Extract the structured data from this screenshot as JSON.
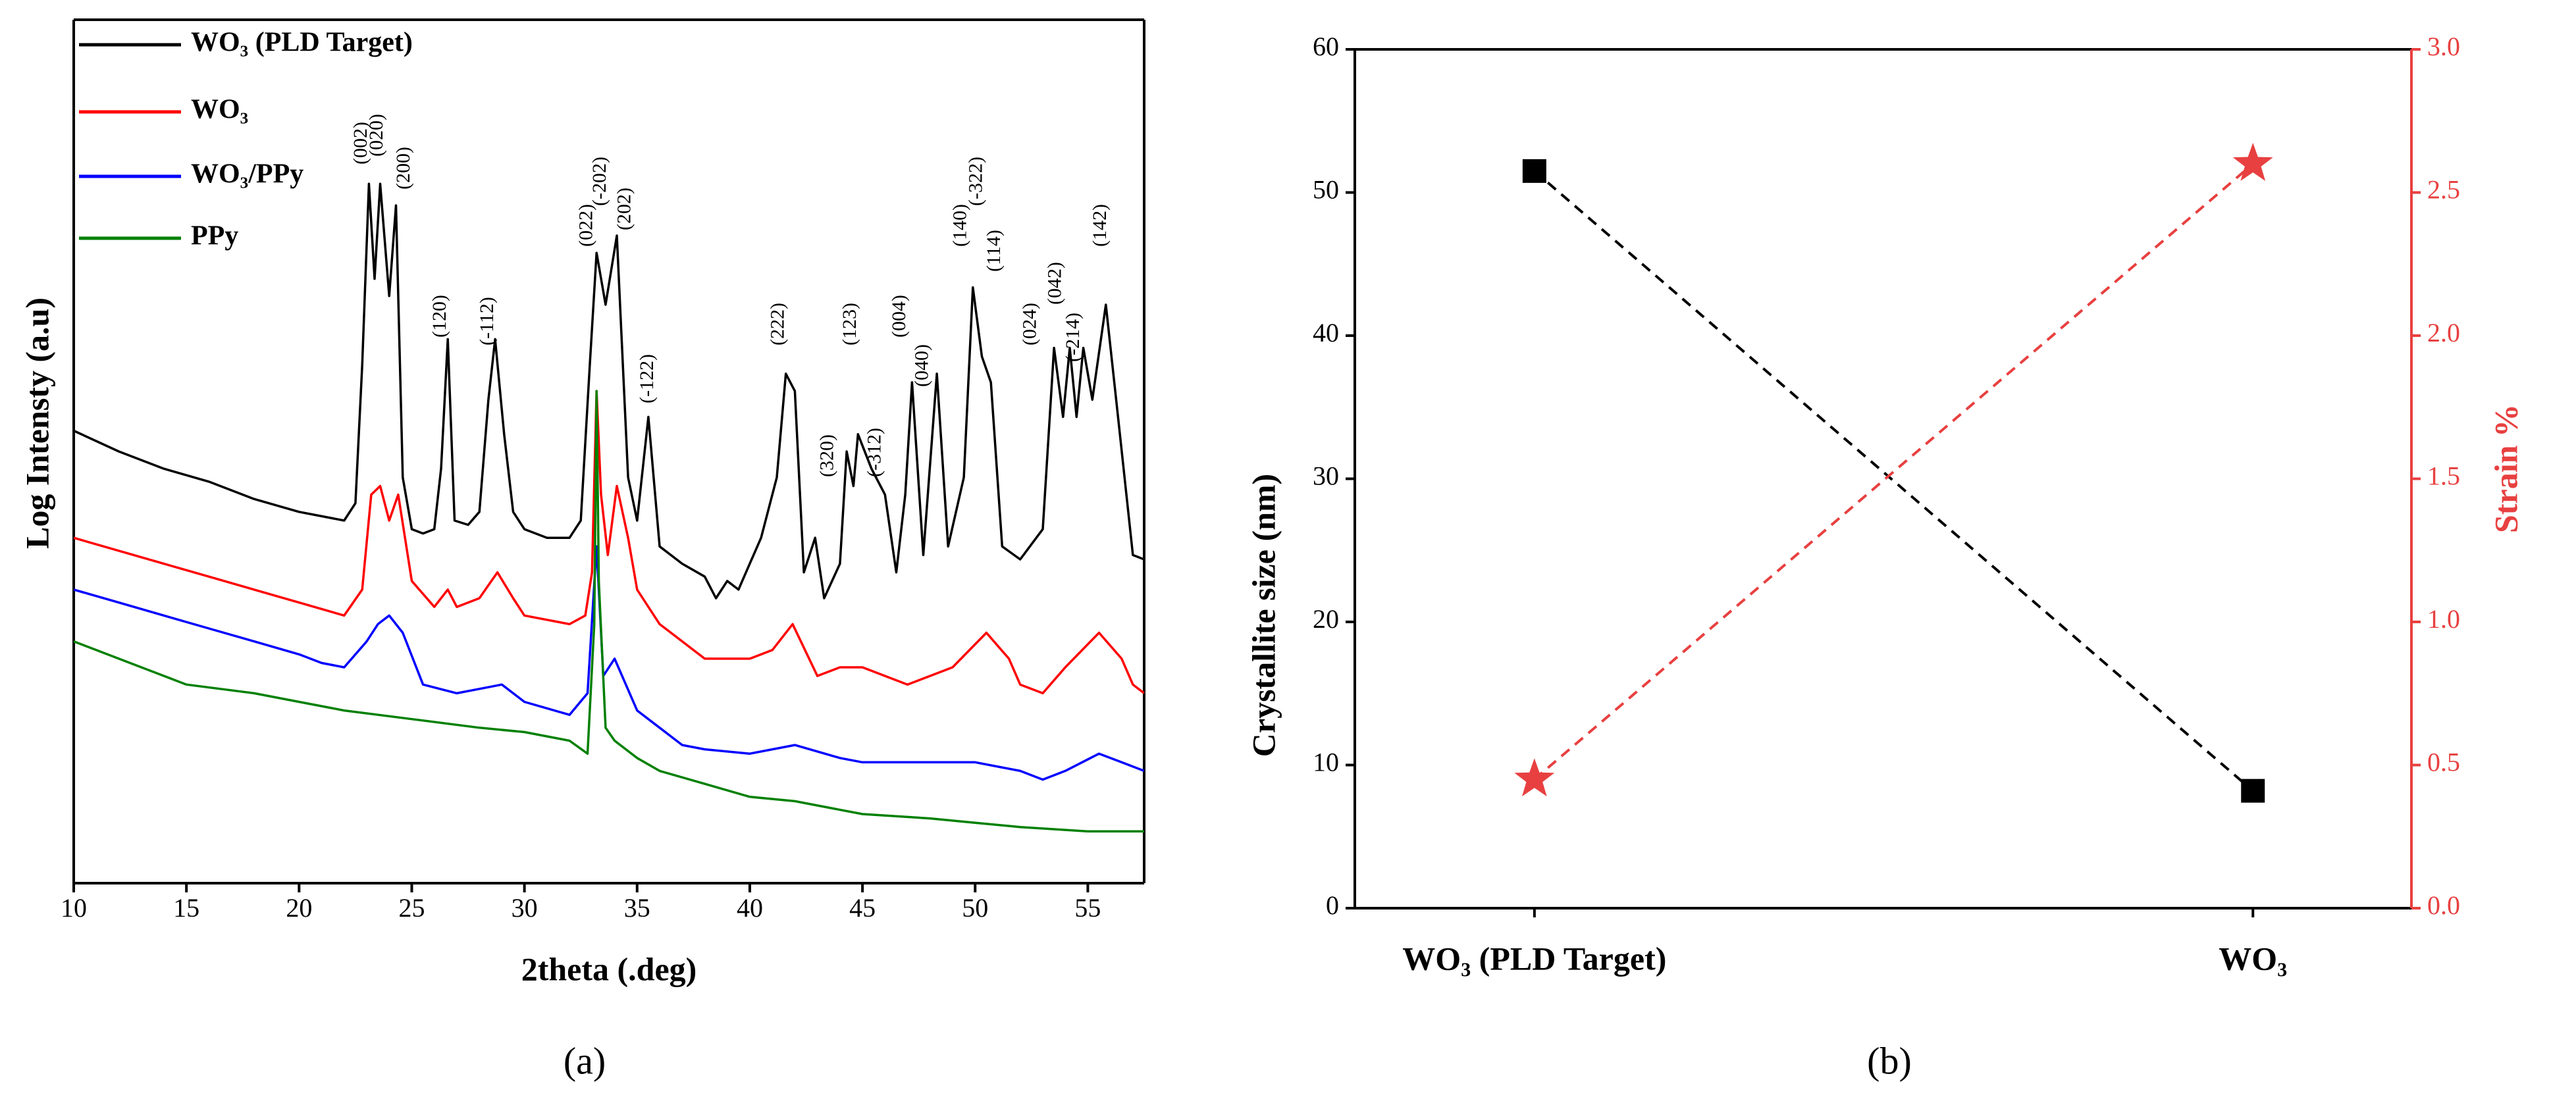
{
  "chart_data": [
    {
      "type": "line",
      "xlabel": "2theta (.deg)",
      "ylabel": "Log Intensty (a.u)",
      "caption": "(a)",
      "xlim": [
        10,
        57.5
      ],
      "xticks": [
        10,
        15,
        20,
        25,
        30,
        35,
        40,
        45,
        50,
        55
      ],
      "ylim": [
        0,
        100
      ],
      "legend": "upper left",
      "series": [
        {
          "name": "WO₃ (PLD Target)",
          "color": "#000000",
          "x": [
            10,
            12,
            14,
            16,
            18,
            20,
            21,
            22,
            22.5,
            22.8,
            23.1,
            23.35,
            23.6,
            24.0,
            24.3,
            24.6,
            25,
            25.5,
            26,
            26.3,
            26.6,
            26.9,
            27.5,
            28,
            28.4,
            28.7,
            29.1,
            29.5,
            30,
            31,
            32,
            32.5,
            32.9,
            33.2,
            33.6,
            34.1,
            34.6,
            35.0,
            35.5,
            36,
            37,
            38,
            38.5,
            39,
            39.5,
            40,
            40.5,
            41.2,
            41.6,
            42.0,
            42.4,
            42.9,
            43.3,
            44,
            44.3,
            44.6,
            44.8,
            45.4,
            46,
            46.5,
            46.9,
            47.2,
            47.7,
            48.3,
            48.8,
            49.5,
            49.9,
            50.3,
            50.7,
            51.2,
            52,
            53,
            53.5,
            53.9,
            54.2,
            54.5,
            54.8,
            55.2,
            55.8,
            56.3,
            57,
            57.5
          ],
          "values": [
            52.4,
            50,
            48,
            46.5,
            44.5,
            43,
            42.5,
            42,
            44,
            60,
            81,
            70,
            81,
            68,
            78.5,
            47,
            41,
            40.5,
            41,
            48,
            63,
            42,
            41.5,
            43,
            56,
            63,
            52,
            43,
            41,
            40,
            40,
            42,
            60,
            73,
            67,
            75,
            47,
            42,
            54,
            39,
            37,
            35.5,
            33,
            35,
            34,
            37,
            40,
            47,
            59,
            57,
            36,
            40,
            33,
            37,
            50,
            46,
            52,
            48,
            45,
            36,
            45,
            58,
            38,
            59,
            39,
            47,
            69,
            61,
            58,
            39,
            37.5,
            41,
            62,
            54,
            62,
            54,
            62,
            56,
            67,
            55,
            38,
            37.5
          ]
        },
        {
          "name": "WO₃",
          "color": "#ff0000",
          "x": [
            10,
            12,
            14,
            16,
            18,
            20,
            22,
            22.8,
            23.2,
            23.6,
            24.0,
            24.4,
            25,
            26,
            26.6,
            27,
            28,
            28.8,
            29.5,
            30,
            32,
            32.7,
            33.0,
            33.2,
            33.4,
            33.7,
            34.1,
            34.6,
            35,
            36,
            37,
            38,
            39,
            40,
            41,
            41.9,
            43,
            44,
            45,
            46,
            47,
            48,
            49,
            50.5,
            51.5,
            52,
            53,
            54,
            55.5,
            56.5,
            57,
            57.5
          ],
          "values": [
            40,
            38.5,
            37,
            35.5,
            34,
            32.5,
            31,
            34,
            45,
            46,
            42,
            45,
            35,
            32,
            34,
            32,
            33,
            36,
            33,
            31,
            30,
            31,
            36,
            57,
            45,
            38,
            46,
            40,
            34,
            30,
            28,
            26,
            26,
            26,
            27,
            30,
            24,
            25,
            25,
            24,
            23,
            24,
            25,
            29,
            26,
            23,
            22,
            25,
            29,
            26,
            23,
            22
          ]
        },
        {
          "name": "WO₃/PPy",
          "color": "#0000ff",
          "x": [
            10,
            12,
            14,
            16,
            18,
            20,
            21,
            22,
            23,
            23.5,
            24.0,
            24.6,
            25.5,
            27,
            28,
            29,
            30,
            32,
            32.8,
            33.2,
            33.5,
            34.0,
            35,
            36,
            37,
            38,
            40,
            42,
            44,
            45,
            47,
            50,
            52,
            53,
            54,
            55.5,
            56.5,
            57.5
          ],
          "values": [
            34,
            32.5,
            31,
            29.5,
            28,
            26.5,
            25.5,
            25,
            28,
            30,
            31,
            29,
            23,
            22,
            22.5,
            23,
            21,
            19.5,
            22,
            39,
            24,
            26,
            20,
            18,
            16,
            15.5,
            15,
            16,
            14.5,
            14,
            14,
            14,
            13,
            12,
            13,
            15,
            14,
            13
          ]
        },
        {
          "name": "PPy",
          "color": "#008000",
          "x": [
            10,
            12,
            15,
            18,
            20,
            22,
            25,
            28,
            30,
            32,
            32.8,
            33.1,
            33.2,
            33.3,
            33.6,
            34,
            35,
            36,
            38,
            40,
            42,
            45,
            48,
            50,
            52,
            55,
            57.5
          ],
          "values": [
            28,
            26,
            23,
            22,
            21,
            20,
            19,
            18,
            17.5,
            16.5,
            15,
            30,
            57,
            35,
            18,
            16.5,
            14.5,
            13,
            11.5,
            10,
            9.5,
            8,
            7.5,
            7,
            6.5,
            6,
            6
          ]
        }
      ],
      "annotations": [
        {
          "text": "(002)",
          "x": 22.8
        },
        {
          "text": "(020)",
          "x": 23.5
        },
        {
          "text": "(200)",
          "x": 24.7
        },
        {
          "text": "(120)",
          "x": 26.3
        },
        {
          "text": "(-112)",
          "x": 28.4
        },
        {
          "text": "(022)",
          "x": 32.8
        },
        {
          "text": "(-202)",
          "x": 33.4
        },
        {
          "text": "(202)",
          "x": 34.5
        },
        {
          "text": "(-122)",
          "x": 35.5
        },
        {
          "text": "(222)",
          "x": 41.3
        },
        {
          "text": "(320)",
          "x": 43.5
        },
        {
          "text": "(123)",
          "x": 44.5
        },
        {
          "text": "(-312)",
          "x": 45.6
        },
        {
          "text": "(004)",
          "x": 46.7
        },
        {
          "text": "(040)",
          "x": 47.7
        },
        {
          "text": "(140)",
          "x": 49.4
        },
        {
          "text": "(-322)",
          "x": 50.1
        },
        {
          "text": "(114)",
          "x": 50.9
        },
        {
          "text": "(024)",
          "x": 52.5
        },
        {
          "text": "(042)",
          "x": 53.6
        },
        {
          "text": "(-214)",
          "x": 54.4
        },
        {
          "text": "(142)",
          "x": 55.6
        }
      ]
    },
    {
      "type": "line",
      "ylabel": "Crystallite size (nm)",
      "y2label": "Strain %",
      "caption": "(b)",
      "categories": [
        "WO₃ (PLD Target)",
        "WO₃"
      ],
      "ylim": [
        0,
        60
      ],
      "yticks": [
        0,
        10,
        20,
        30,
        40,
        50,
        60
      ],
      "y2lim": [
        0,
        3
      ],
      "y2color": "#e84040",
      "y2ticks": [
        {
          "value": 0,
          "label": "0.0"
        },
        0.5,
        {
          "value": 1,
          "label": "1.0"
        },
        1.5,
        {
          "value": 2,
          "label": "2.0"
        },
        2.5,
        {
          "value": 3,
          "label": "3.0"
        }
      ],
      "series": [
        {
          "color": "#000000",
          "marker": "square",
          "linestyle": "dashed",
          "values": [
            51.5,
            8.2
          ]
        },
        {
          "color": "#e84040",
          "marker": "star",
          "linestyle": "dashed",
          "axis": "y2",
          "values": [
            0.45,
            2.6
          ]
        }
      ]
    }
  ]
}
